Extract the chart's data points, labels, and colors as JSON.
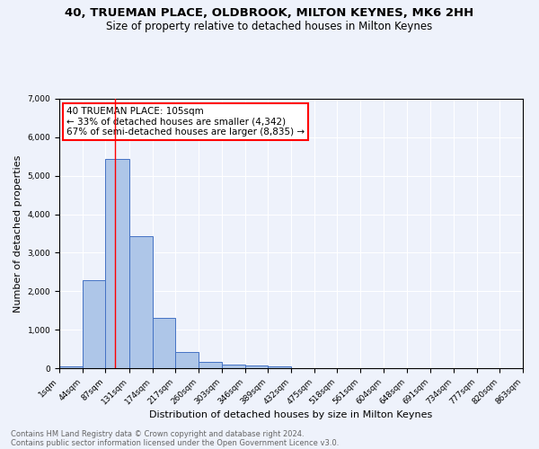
{
  "title1": "40, TRUEMAN PLACE, OLDBROOK, MILTON KEYNES, MK6 2HH",
  "title2": "Size of property relative to detached houses in Milton Keynes",
  "xlabel": "Distribution of detached houses by size in Milton Keynes",
  "ylabel": "Number of detached properties",
  "annotation_title": "40 TRUEMAN PLACE: 105sqm",
  "annotation_line2": "← 33% of detached houses are smaller (4,342)",
  "annotation_line3": "67% of semi-detached houses are larger (8,835) →",
  "footer1": "Contains HM Land Registry data © Crown copyright and database right 2024.",
  "footer2": "Contains public sector information licensed under the Open Government Licence v3.0.",
  "bar_values": [
    55,
    2280,
    5440,
    3440,
    1310,
    430,
    170,
    100,
    70,
    55,
    0,
    0,
    0,
    0,
    0,
    0,
    0,
    0,
    0,
    0
  ],
  "bar_edges": [
    1,
    44,
    87,
    131,
    174,
    217,
    260,
    303,
    346,
    389,
    432,
    475,
    518,
    561,
    604,
    648,
    691,
    734,
    777,
    820,
    863
  ],
  "tick_labels": [
    "1sqm",
    "44sqm",
    "87sqm",
    "131sqm",
    "174sqm",
    "217sqm",
    "260sqm",
    "303sqm",
    "346sqm",
    "389sqm",
    "432sqm",
    "475sqm",
    "518sqm",
    "561sqm",
    "604sqm",
    "648sqm",
    "691sqm",
    "734sqm",
    "777sqm",
    "820sqm",
    "863sqm"
  ],
  "bar_color": "#aec6e8",
  "bar_edge_color": "#4472c4",
  "red_line_x": 105,
  "ylim": [
    0,
    7000
  ],
  "yticks": [
    0,
    1000,
    2000,
    3000,
    4000,
    5000,
    6000,
    7000
  ],
  "bg_color": "#eef2fb",
  "grid_color": "#ffffff",
  "title1_fontsize": 9.5,
  "title2_fontsize": 8.5,
  "xlabel_fontsize": 8,
  "ylabel_fontsize": 8,
  "tick_fontsize": 6.5,
  "footer_fontsize": 6,
  "ann_fontsize": 7.5
}
